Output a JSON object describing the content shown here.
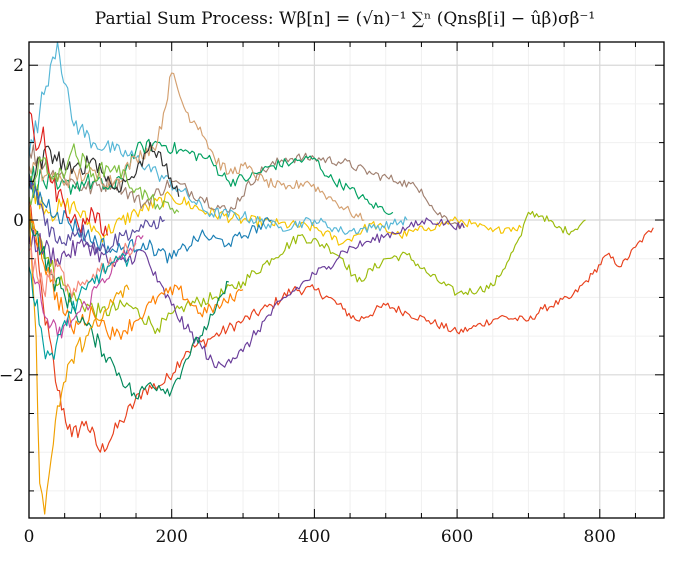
{
  "title": "Partial Sum Process: Wβ[n] = (√n)⁻¹ ∑ⁿ (Qnsβ[i] − ûβ)σβ⁻¹",
  "chart_data": {
    "type": "line",
    "title": "Partial Sum Process: Wβ[n] = (√n)⁻¹ ∑ⁿ (Qnsβ[i] − ûβ)σβ⁻¹",
    "xlabel": "",
    "ylabel": "",
    "xlim": [
      0,
      890
    ],
    "ylim": [
      -3.85,
      2.3
    ],
    "xticks": [
      0,
      200,
      400,
      600,
      800
    ],
    "yticks": [
      -2,
      0,
      2
    ],
    "grid": true,
    "legend": "none",
    "series": [
      {
        "color": "#E8401C",
        "points": [
          [
            0,
            0.3
          ],
          [
            20,
            -1.1
          ],
          [
            40,
            -2.2
          ],
          [
            60,
            -2.8
          ],
          [
            80,
            -2.6
          ],
          [
            100,
            -3.0
          ],
          [
            130,
            -2.6
          ],
          [
            160,
            -2.2
          ],
          [
            190,
            -2.1
          ],
          [
            220,
            -1.7
          ],
          [
            260,
            -1.5
          ],
          [
            300,
            -1.3
          ],
          [
            340,
            -1.1
          ],
          [
            370,
            -0.9
          ],
          [
            400,
            -0.9
          ],
          [
            420,
            -1.0
          ],
          [
            440,
            -1.15
          ],
          [
            460,
            -1.3
          ],
          [
            500,
            -1.1
          ],
          [
            530,
            -1.2
          ],
          [
            560,
            -1.3
          ],
          [
            600,
            -1.45
          ],
          [
            620,
            -1.4
          ],
          [
            660,
            -1.25
          ],
          [
            700,
            -1.3
          ],
          [
            720,
            -1.15
          ],
          [
            760,
            -1.0
          ],
          [
            790,
            -0.7
          ],
          [
            810,
            -0.45
          ],
          [
            830,
            -0.6
          ],
          [
            850,
            -0.35
          ],
          [
            875,
            -0.1
          ]
        ]
      },
      {
        "color": "#9BBB0B",
        "points": [
          [
            0,
            0.2
          ],
          [
            30,
            -0.6
          ],
          [
            60,
            -1.0
          ],
          [
            100,
            -1.2
          ],
          [
            140,
            -1.1
          ],
          [
            180,
            -1.4
          ],
          [
            220,
            -1.1
          ],
          [
            260,
            -1.0
          ],
          [
            300,
            -0.8
          ],
          [
            340,
            -0.5
          ],
          [
            380,
            -0.2
          ],
          [
            420,
            -0.35
          ],
          [
            440,
            -0.5
          ],
          [
            460,
            -0.8
          ],
          [
            500,
            -0.5
          ],
          [
            530,
            -0.45
          ],
          [
            560,
            -0.7
          ],
          [
            600,
            -0.95
          ],
          [
            630,
            -0.9
          ],
          [
            650,
            -0.85
          ],
          [
            670,
            -0.55
          ],
          [
            690,
            -0.2
          ],
          [
            700,
            0.1
          ],
          [
            720,
            0.05
          ],
          [
            740,
            -0.1
          ],
          [
            760,
            -0.15
          ],
          [
            780,
            0.0
          ]
        ]
      },
      {
        "color": "#F5C400",
        "points": [
          [
            0,
            0.5
          ],
          [
            30,
            0.1
          ],
          [
            60,
            0.2
          ],
          [
            100,
            -0.2
          ],
          [
            150,
            0.1
          ],
          [
            200,
            0.3
          ],
          [
            250,
            0.1
          ],
          [
            300,
            0.0
          ],
          [
            350,
            -0.05
          ],
          [
            400,
            -0.1
          ],
          [
            440,
            -0.3
          ],
          [
            480,
            -0.05
          ],
          [
            520,
            -0.2
          ],
          [
            560,
            -0.1
          ],
          [
            600,
            0.0
          ],
          [
            620,
            -0.05
          ],
          [
            650,
            -0.15
          ],
          [
            670,
            -0.1
          ],
          [
            690,
            -0.1
          ]
        ]
      },
      {
        "color": "#A08070",
        "points": [
          [
            0,
            0.9
          ],
          [
            40,
            0.6
          ],
          [
            80,
            0.4
          ],
          [
            120,
            0.5
          ],
          [
            160,
            0.2
          ],
          [
            200,
            0.5
          ],
          [
            240,
            0.3
          ],
          [
            280,
            0.1
          ],
          [
            320,
            0.6
          ],
          [
            360,
            0.8
          ],
          [
            400,
            0.8
          ],
          [
            440,
            0.75
          ],
          [
            480,
            0.6
          ],
          [
            520,
            0.5
          ],
          [
            550,
            0.4
          ],
          [
            570,
            0.1
          ],
          [
            600,
            -0.05
          ],
          [
            610,
            -0.1
          ]
        ]
      },
      {
        "color": "#00A060",
        "points": [
          [
            0,
            0.6
          ],
          [
            40,
            0.4
          ],
          [
            80,
            0.5
          ],
          [
            120,
            0.4
          ],
          [
            150,
            0.9
          ],
          [
            180,
            1.0
          ],
          [
            210,
            0.9
          ],
          [
            250,
            0.8
          ],
          [
            280,
            0.5
          ],
          [
            310,
            0.55
          ],
          [
            340,
            0.7
          ],
          [
            370,
            0.75
          ],
          [
            400,
            0.8
          ],
          [
            420,
            0.55
          ],
          [
            450,
            0.4
          ],
          [
            480,
            0.2
          ],
          [
            510,
            0.1
          ]
        ]
      },
      {
        "color": "#55B6D6",
        "points": [
          [
            0,
            0.8
          ],
          [
            15,
            1.4
          ],
          [
            30,
            2.0
          ],
          [
            40,
            2.3
          ],
          [
            60,
            1.3
          ],
          [
            90,
            1.0
          ],
          [
            120,
            0.9
          ],
          [
            150,
            0.8
          ],
          [
            180,
            0.6
          ],
          [
            210,
            0.4
          ],
          [
            250,
            0.1
          ],
          [
            300,
            0.05
          ],
          [
            350,
            -0.1
          ],
          [
            400,
            0.0
          ],
          [
            440,
            -0.15
          ],
          [
            480,
            -0.1
          ],
          [
            510,
            -0.05
          ],
          [
            530,
            0.0
          ]
        ]
      },
      {
        "color": "#D4A070",
        "points": [
          [
            0,
            0.7
          ],
          [
            40,
            0.5
          ],
          [
            80,
            0.6
          ],
          [
            120,
            0.5
          ],
          [
            150,
            0.8
          ],
          [
            180,
            1.0
          ],
          [
            200,
            1.9
          ],
          [
            220,
            1.4
          ],
          [
            240,
            1.2
          ],
          [
            260,
            0.8
          ],
          [
            280,
            0.6
          ],
          [
            300,
            0.7
          ],
          [
            330,
            0.5
          ],
          [
            360,
            0.4
          ],
          [
            390,
            0.5
          ],
          [
            420,
            0.3
          ],
          [
            450,
            0.1
          ],
          [
            470,
            0.0
          ]
        ]
      },
      {
        "color": "#6A3D9A",
        "points": [
          [
            0,
            -0.2
          ],
          [
            40,
            -0.5
          ],
          [
            80,
            -0.3
          ],
          [
            120,
            -0.6
          ],
          [
            160,
            -0.4
          ],
          [
            180,
            -0.8
          ],
          [
            200,
            -1.1
          ],
          [
            220,
            -1.4
          ],
          [
            240,
            -1.6
          ],
          [
            260,
            -1.9
          ],
          [
            280,
            -1.8
          ],
          [
            300,
            -1.7
          ],
          [
            330,
            -1.3
          ],
          [
            360,
            -1.0
          ],
          [
            400,
            -0.7
          ],
          [
            420,
            -0.6
          ],
          [
            440,
            -0.4
          ],
          [
            470,
            -0.3
          ],
          [
            500,
            -0.2
          ],
          [
            530,
            -0.1
          ],
          [
            560,
            0.0
          ],
          [
            590,
            -0.05
          ],
          [
            610,
            -0.1
          ]
        ]
      },
      {
        "color": "#1A7FB5",
        "points": [
          [
            0,
            0.4
          ],
          [
            40,
            0.1
          ],
          [
            80,
            -0.2
          ],
          [
            120,
            -0.4
          ],
          [
            160,
            -0.3
          ],
          [
            200,
            -0.5
          ],
          [
            240,
            -0.2
          ],
          [
            280,
            -0.3
          ],
          [
            310,
            -0.15
          ],
          [
            340,
            0.0
          ]
        ]
      },
      {
        "color": "#FF7F00",
        "points": [
          [
            0,
            0.2
          ],
          [
            30,
            -0.8
          ],
          [
            60,
            -1.4
          ],
          [
            90,
            -1.2
          ],
          [
            120,
            -1.5
          ],
          [
            150,
            -1.3
          ],
          [
            180,
            -1.0
          ],
          [
            210,
            -0.9
          ],
          [
            240,
            -1.2
          ],
          [
            270,
            -1.1
          ],
          [
            300,
            -0.9
          ]
        ]
      },
      {
        "color": "#00885A",
        "points": [
          [
            0,
            0.1
          ],
          [
            30,
            -0.7
          ],
          [
            60,
            -1.1
          ],
          [
            90,
            -1.5
          ],
          [
            120,
            -1.9
          ],
          [
            150,
            -2.3
          ],
          [
            170,
            -2.1
          ],
          [
            200,
            -2.2
          ],
          [
            220,
            -1.8
          ],
          [
            240,
            -1.5
          ],
          [
            260,
            -1.2
          ],
          [
            280,
            -0.8
          ]
        ]
      },
      {
        "color": "#C44AA0",
        "points": [
          [
            0,
            -0.3
          ],
          [
            20,
            -1.2
          ],
          [
            40,
            -1.5
          ],
          [
            60,
            -1.3
          ],
          [
            80,
            -1.1
          ],
          [
            100,
            -0.8
          ],
          [
            130,
            -0.5
          ],
          [
            160,
            -0.2
          ]
        ]
      },
      {
        "color": "#2E2E2E",
        "points": [
          [
            0,
            0.5
          ],
          [
            30,
            0.9
          ],
          [
            60,
            0.6
          ],
          [
            90,
            0.8
          ],
          [
            120,
            0.4
          ],
          [
            150,
            0.6
          ],
          [
            170,
            1.0
          ],
          [
            190,
            0.7
          ],
          [
            210,
            0.3
          ]
        ]
      },
      {
        "color": "#E0201C",
        "points": [
          [
            0,
            1.4
          ],
          [
            10,
            0.9
          ],
          [
            20,
            1.2
          ],
          [
            30,
            0.5
          ],
          [
            50,
            0.2
          ],
          [
            70,
            -0.1
          ],
          [
            90,
            0.1
          ],
          [
            110,
            -0.2
          ]
        ]
      },
      {
        "color": "#F0A000",
        "points": [
          [
            0,
            0.2
          ],
          [
            10,
            -1.5
          ],
          [
            15,
            -3.4
          ],
          [
            22,
            -3.8
          ],
          [
            28,
            -3.3
          ],
          [
            40,
            -2.4
          ],
          [
            60,
            -1.8
          ],
          [
            80,
            -1.5
          ],
          [
            100,
            -1.3
          ],
          [
            120,
            -1.0
          ],
          [
            140,
            -0.9
          ]
        ]
      },
      {
        "color": "#5C4DA0",
        "points": [
          [
            0,
            0.6
          ],
          [
            20,
            0.1
          ],
          [
            40,
            -0.3
          ],
          [
            70,
            -0.1
          ],
          [
            100,
            -0.4
          ],
          [
            130,
            -0.2
          ],
          [
            160,
            -0.1
          ],
          [
            190,
            0.0
          ]
        ]
      },
      {
        "color": "#F58A7A",
        "points": [
          [
            0,
            -0.4
          ],
          [
            20,
            -0.9
          ],
          [
            40,
            -0.6
          ],
          [
            60,
            -1.0
          ],
          [
            90,
            -0.7
          ],
          [
            120,
            -0.5
          ],
          [
            150,
            -0.3
          ]
        ]
      },
      {
        "color": "#00A0A0",
        "points": [
          [
            0,
            -0.6
          ],
          [
            20,
            -1.6
          ],
          [
            35,
            -1.8
          ],
          [
            50,
            -1.3
          ],
          [
            80,
            -0.9
          ],
          [
            110,
            -0.6
          ],
          [
            140,
            -0.5
          ]
        ]
      },
      {
        "color": "#7FBF40",
        "points": [
          [
            0,
            0.3
          ],
          [
            20,
            0.8
          ],
          [
            40,
            0.5
          ],
          [
            60,
            0.9
          ],
          [
            90,
            0.6
          ],
          [
            120,
            0.7
          ],
          [
            150,
            0.4
          ],
          [
            180,
            0.2
          ],
          [
            210,
            0.1
          ]
        ]
      }
    ]
  }
}
